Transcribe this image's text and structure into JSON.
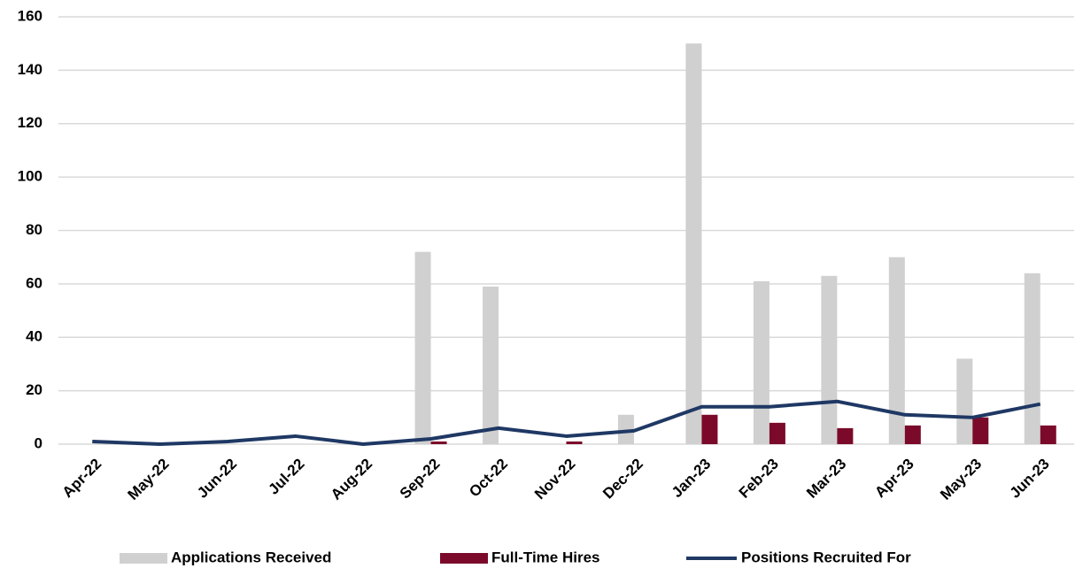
{
  "chart_data": {
    "type": "bar",
    "categories": [
      "Apr-22",
      "May-22",
      "Jun-22",
      "Jul-22",
      "Aug-22",
      "Sep-22",
      "Oct-22",
      "Nov-22",
      "Dec-22",
      "Jan-23",
      "Feb-23",
      "Mar-23",
      "Apr-23",
      "May-23",
      "Jun-23"
    ],
    "series": [
      {
        "name": "Applications Received",
        "type": "bar",
        "color": "#d0d0d0",
        "values": [
          0,
          0,
          0,
          0,
          0,
          72,
          59,
          0,
          11,
          150,
          61,
          63,
          70,
          32,
          64
        ]
      },
      {
        "name": "Full-Time Hires",
        "type": "bar",
        "color": "#7b0a2a",
        "values": [
          0,
          0,
          0,
          0,
          0,
          1,
          0,
          1,
          0,
          11,
          8,
          6,
          7,
          10,
          7
        ]
      },
      {
        "name": "Positions Recruited For",
        "type": "line",
        "color": "#1f3864",
        "values": [
          1,
          0,
          1,
          3,
          0,
          2,
          6,
          3,
          5,
          14,
          14,
          16,
          11,
          10,
          15
        ]
      }
    ],
    "ylim": [
      0,
      160
    ],
    "yticks": [
      0,
      20,
      40,
      60,
      80,
      100,
      120,
      140,
      160
    ],
    "grid": true,
    "legend": "bottom"
  }
}
